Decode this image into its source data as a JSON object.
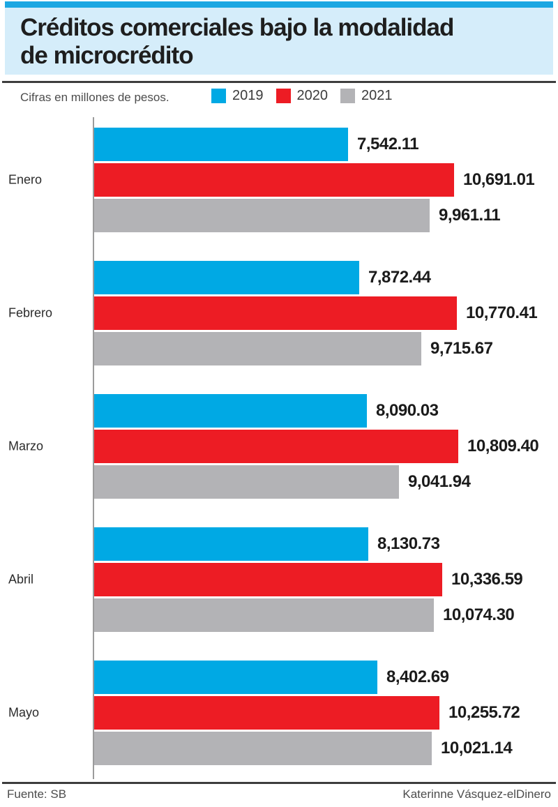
{
  "header": {
    "top_strip_color": "#1ba7e2",
    "panel_color": "#d5edfa",
    "title_lines": [
      "Créditos comerciales bajo la modalidad",
      "de microcrédito"
    ]
  },
  "subheader": {
    "note": "Cifras en millones de pesos.",
    "legend": [
      {
        "label": "2019",
        "color": "#00a9e4"
      },
      {
        "label": "2020",
        "color": "#ed1c24"
      },
      {
        "label": "2021",
        "color": "#b3b3b6"
      }
    ]
  },
  "chart_data": {
    "type": "bar",
    "orientation": "horizontal",
    "title": "Créditos comerciales bajo la modalidad de microcrédito",
    "units": "millones de pesos",
    "legend_position": "top",
    "grid": false,
    "xlim": [
      0,
      10809.4
    ],
    "categories": [
      "Enero",
      "Febrero",
      "Marzo",
      "Abril",
      "Mayo"
    ],
    "series": [
      {
        "name": "2019",
        "color": "#00a9e4",
        "values": [
          7542.11,
          7872.44,
          8090.03,
          8130.73,
          8402.69
        ]
      },
      {
        "name": "2020",
        "color": "#ed1c24",
        "values": [
          10691.01,
          10770.41,
          10809.4,
          10336.59,
          10255.72
        ]
      },
      {
        "name": "2021",
        "color": "#b3b3b6",
        "values": [
          9961.11,
          9715.67,
          9041.94,
          10074.3,
          10021.14
        ]
      }
    ]
  },
  "footer": {
    "source": "Fuente: SB",
    "credit": "Katerinne Vásquez-elDinero"
  }
}
